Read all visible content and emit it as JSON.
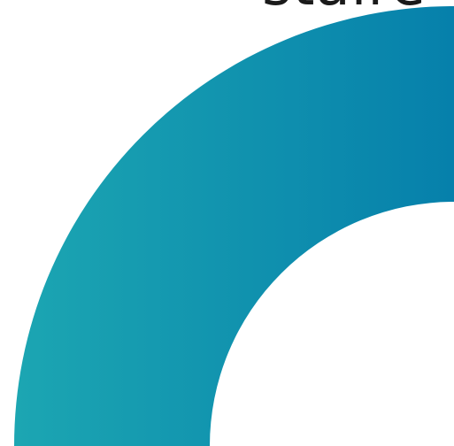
{
  "heading": {
    "text": "staire"
  },
  "graphic": {
    "name": "quarter-ring-arc",
    "gradient_start_color": "#1ca6b2",
    "gradient_end_color": "#0680ab",
    "background_color": "#ffffff"
  }
}
